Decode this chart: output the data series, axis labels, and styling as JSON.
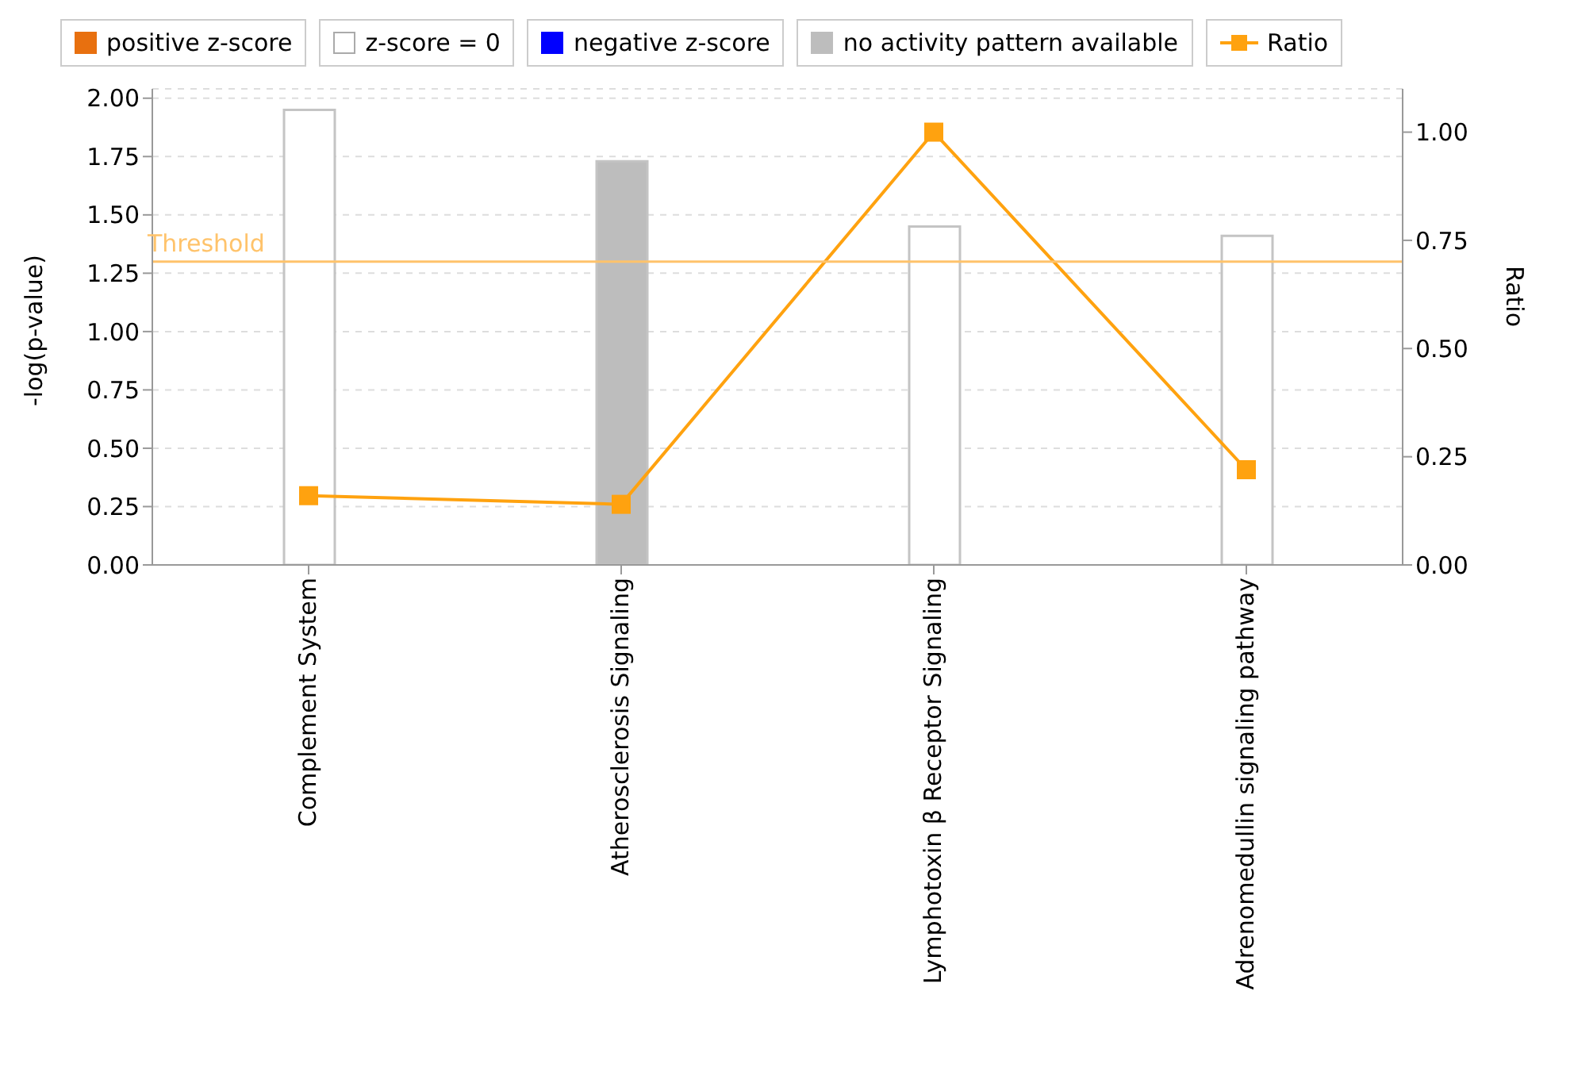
{
  "chart_data": {
    "type": "bar",
    "stacked": true,
    "ylabel": "-log(p-value)",
    "y2label": "Ratio",
    "categories": [
      "Complement System",
      "Atherosclerosis Signaling",
      "Lymphotoxin β Receptor Signaling",
      "Adrenomedullin signaling pathway"
    ],
    "series": [
      {
        "name": "positive z-score",
        "color": "#e8700f",
        "values": [
          null,
          null,
          null,
          null
        ]
      },
      {
        "name": "z-score = 0",
        "color": "#ffffff",
        "values": [
          1.95,
          null,
          1.45,
          1.41
        ]
      },
      {
        "name": "negative z-score",
        "color": "#0000ff",
        "values": [
          null,
          null,
          null,
          null
        ]
      },
      {
        "name": "no activity pattern available",
        "color": "#bdbdbd",
        "values": [
          null,
          1.73,
          null,
          null
        ]
      },
      {
        "name": "Ratio",
        "type": "line",
        "axis": "y2",
        "color": "#ffa20f",
        "marker": "square",
        "values": [
          0.16,
          0.14,
          1.0,
          0.22
        ]
      }
    ],
    "ylim": [
      0,
      2.04
    ],
    "yticks": [
      {
        "value": 0,
        "label": "0.00"
      },
      {
        "value": 0.25,
        "label": "0.25"
      },
      {
        "value": 0.5,
        "label": "0.50"
      },
      {
        "value": 0.75,
        "label": "0.75"
      },
      {
        "value": 1,
        "label": "1.00"
      },
      {
        "value": 1.25,
        "label": "1.25"
      },
      {
        "value": 1.5,
        "label": "1.50"
      },
      {
        "value": 1.75,
        "label": "1.75"
      },
      {
        "value": 2,
        "label": "2.00"
      }
    ],
    "y2lim": [
      0,
      1.1
    ],
    "y2ticks": [
      {
        "value": 0,
        "label": "0.00"
      },
      {
        "value": 0.25,
        "label": "0.25"
      },
      {
        "value": 0.5,
        "label": "0.50"
      },
      {
        "value": 0.75,
        "label": "0.75"
      },
      {
        "value": 1,
        "label": "1.00"
      }
    ],
    "ref_lines": [
      {
        "axis": "y",
        "value": 1.3,
        "label": "Threshold",
        "color": "#ffc36b"
      }
    ],
    "grid": "y",
    "legend": "top"
  }
}
